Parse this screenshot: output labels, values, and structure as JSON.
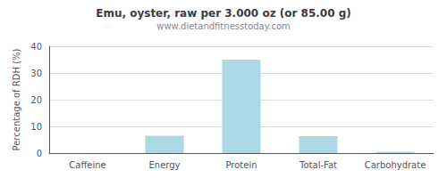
{
  "chart_data": {
    "type": "bar",
    "title": "Emu, oyster, raw per 3.000 oz (or 85.00 g)",
    "subtitle": "www.dietandfitnesstoday.com",
    "categories": [
      "Caffeine",
      "Energy",
      "Protein",
      "Total-Fat",
      "Carbohydrate"
    ],
    "values": [
      0,
      6.5,
      35,
      6.3,
      0.5
    ],
    "color": "#add8e6",
    "ylabel": "Percentage of RDH (%)",
    "ylim": [
      0,
      40
    ],
    "yticks": [
      0,
      10,
      20,
      30,
      40
    ],
    "grid": true
  }
}
